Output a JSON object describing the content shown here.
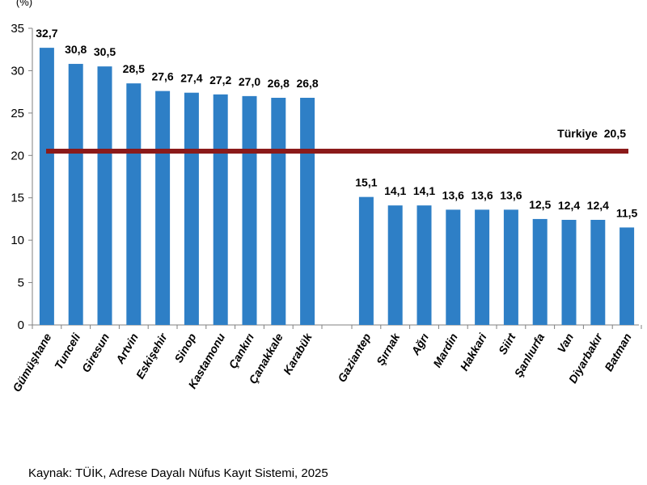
{
  "chart_data": {
    "type": "bar",
    "ylabel": "(%)",
    "ylim": [
      0,
      35
    ],
    "yticks": [
      0,
      5,
      10,
      15,
      20,
      25,
      30,
      35
    ],
    "grid": false,
    "bar_color": "#2e7fc6",
    "groups": [
      {
        "categories": [
          "Gümüşhane",
          "Tunceli",
          "Giresun",
          "Artvin",
          "Eskişehir",
          "Sinop",
          "Kastamonu",
          "Çankırı",
          "Çanakkale",
          "Karabük"
        ],
        "values": [
          32.7,
          30.8,
          30.5,
          28.5,
          27.6,
          27.4,
          27.2,
          27.0,
          26.8,
          26.8
        ],
        "value_labels": [
          "32,7",
          "30,8",
          "30,5",
          "28,5",
          "27,6",
          "27,4",
          "27,2",
          "27,0",
          "26,8",
          "26,8"
        ]
      },
      {
        "categories": [
          "Gaziantep",
          "Şırnak",
          "Ağrı",
          "Mardin",
          "Hakkari",
          "Siirt",
          "Şanlıurfa",
          "Van",
          "Diyarbakır",
          "Batman"
        ],
        "values": [
          15.1,
          14.1,
          14.1,
          13.6,
          13.6,
          13.6,
          12.5,
          12.4,
          12.4,
          11.5
        ],
        "value_labels": [
          "15,1",
          "14,1",
          "14,1",
          "13,6",
          "13,6",
          "13,6",
          "12,5",
          "12,4",
          "12,4",
          "11,5"
        ]
      }
    ],
    "reference_line": {
      "value": 20.5,
      "label": "Türkiye  20,5",
      "color": "#8b1a1a"
    }
  },
  "source_text": "Kaynak: TÜİK, Adrese Dayalı Nüfus Kayıt Sistemi, 2025"
}
